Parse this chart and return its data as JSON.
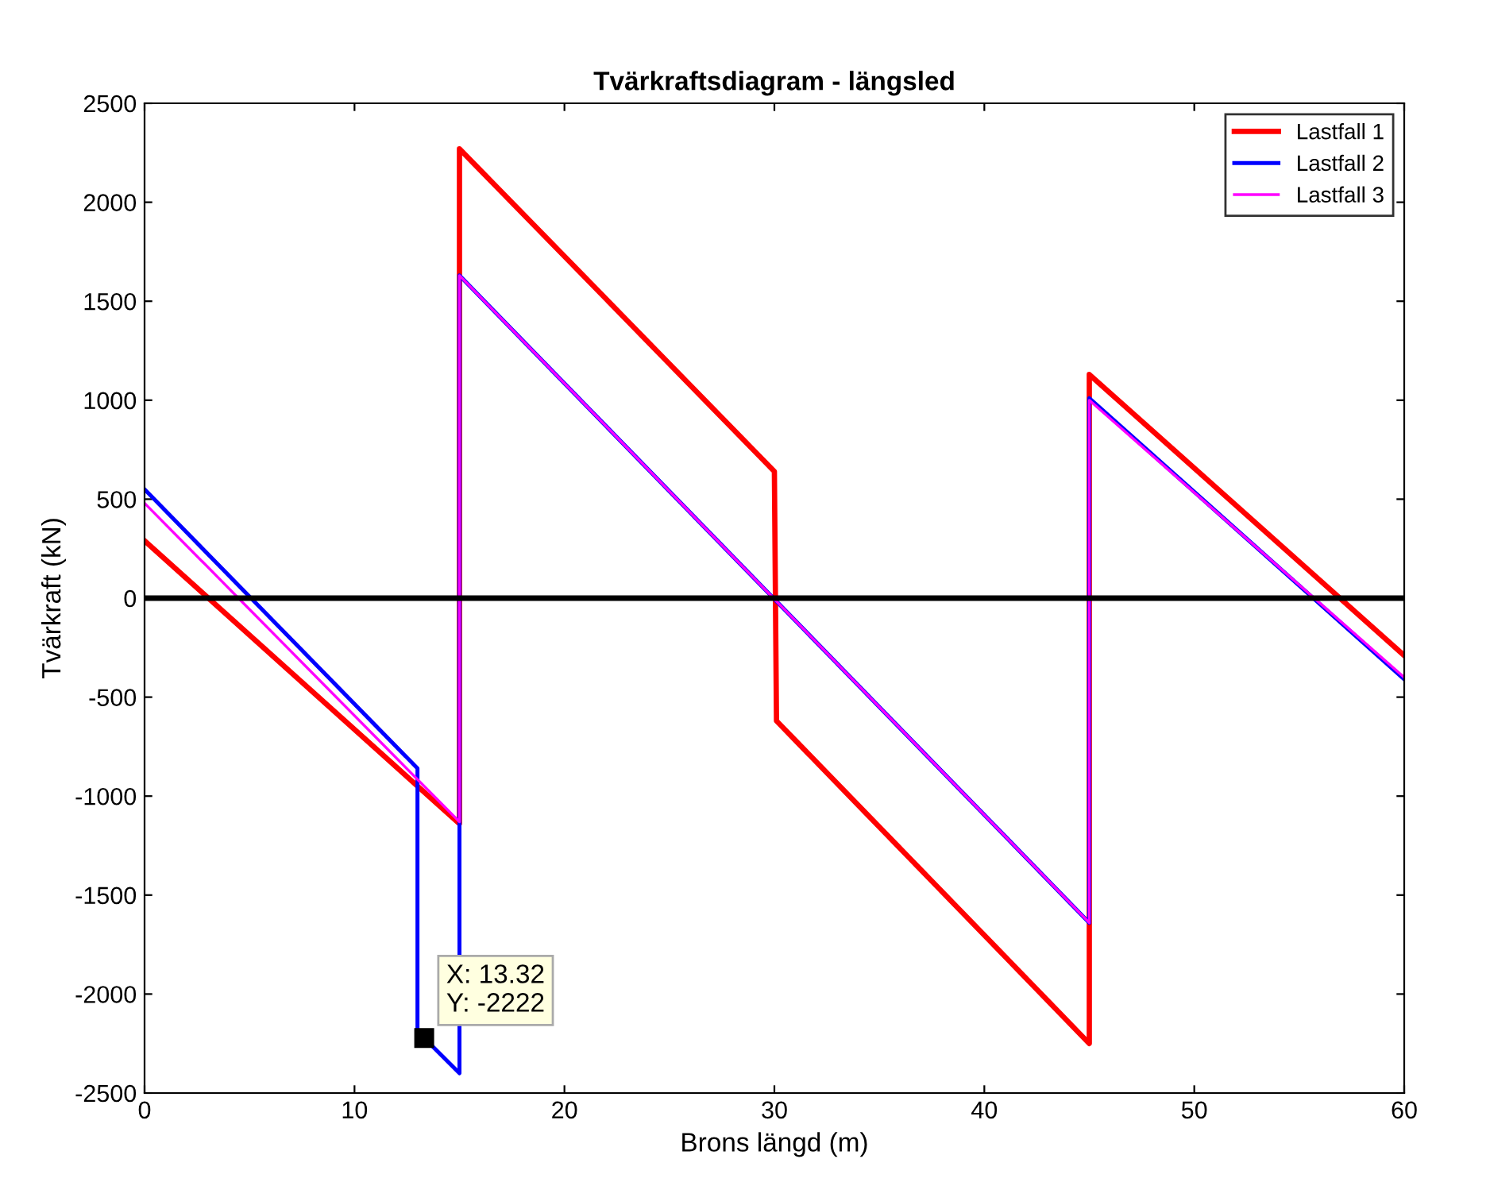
{
  "chart_data": {
    "type": "line",
    "title": "Tvärkraftsdiagram - längsled",
    "xlabel": "Brons längd (m)",
    "ylabel": "Tvärkraft (kN)",
    "xlim": [
      0,
      60
    ],
    "xticks": [
      0,
      10,
      20,
      30,
      40,
      50,
      60
    ],
    "ylim": [
      -2500,
      2500
    ],
    "yticks": [
      -2500,
      -2000,
      -1500,
      -1000,
      -500,
      0,
      500,
      1000,
      1500,
      2000,
      2500
    ],
    "grid": false,
    "legend": "top right",
    "marker": "none",
    "line_style": "solid",
    "series": [
      {
        "name": "Lastfall 1",
        "color": "#ff0000",
        "x": [
          0,
          15,
          15,
          30,
          30.1,
          45,
          45,
          60
        ],
        "values": [
          290,
          -1140,
          2270,
          640,
          -620,
          -2250,
          1130,
          -290
        ]
      },
      {
        "name": "Lastfall 2",
        "color": "#0000ff",
        "x": [
          0,
          13,
          13,
          13.32,
          15,
          15,
          45,
          45,
          60
        ],
        "values": [
          550,
          -860,
          -2220,
          -2222,
          -2400,
          1630,
          -1640,
          1010,
          -410
        ]
      },
      {
        "name": "Lastfall 3",
        "color": "#ff00ff",
        "x": [
          0,
          15,
          15,
          45,
          45,
          60
        ],
        "values": [
          480,
          -1130,
          1630,
          -1640,
          1000,
          -400
        ]
      }
    ],
    "ref_lines": [
      {
        "axis": "y",
        "value": 0,
        "color": "#000000",
        "line_style": "solid"
      }
    ],
    "annotations": [
      {
        "text": "X: 13.32\nY: -2222",
        "x": 13.32,
        "y": -2222
      }
    ]
  }
}
